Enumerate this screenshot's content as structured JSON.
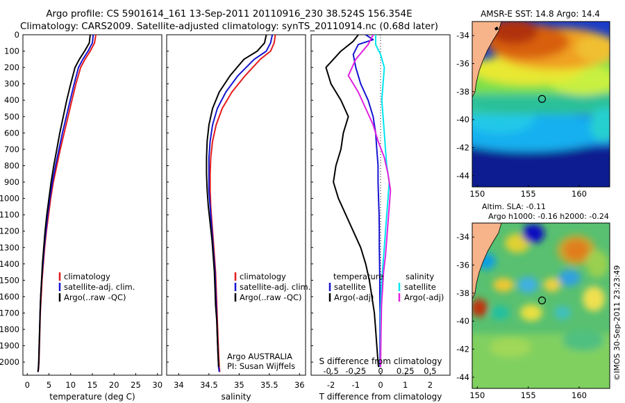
{
  "title_line1": "Argo profile: CS 5901614_161 13-Sep-2011 20110916_230 38.524S 156.354E",
  "title_line2": "Climatology: CARS2009. Satellite-adjusted climatology: synTS_20110914.nc (0.68d later)",
  "credit_vertical": "©IMOS 30-Sep-2011 23:23:49",
  "colors": {
    "climatology": "#e41a1c",
    "satellite": "#1414d2",
    "argo": "#000000",
    "cyan": "#00e5ee",
    "magenta": "#e020e0",
    "land": "#f7b38a"
  },
  "chart_data": [
    {
      "type": "line",
      "panel": "temperature",
      "xlabel": "temperature (deg C)",
      "xlim": [
        -1,
        31
      ],
      "xticks": [
        "0",
        "5",
        "10",
        "15",
        "20",
        "25",
        "30"
      ],
      "ylim": [
        2080,
        0
      ],
      "yticks": [
        "0",
        "100",
        "200",
        "300",
        "400",
        "500",
        "600",
        "700",
        "800",
        "900",
        "1000",
        "1100",
        "1200",
        "1300",
        "1400",
        "1500",
        "1600",
        "1700",
        "1800",
        "1900",
        "2000"
      ],
      "legend": [
        "climatology",
        "satellite-adj. clim.",
        "Argo(..raw -QC)"
      ],
      "series": [
        {
          "name": "climatology",
          "color": "#e41a1c",
          "x": [
            15.8,
            15.5,
            14.5,
            13.3,
            12.3,
            11.2,
            10.3,
            9.4,
            8.5,
            7.6,
            6.8,
            6.0,
            5.4,
            4.9,
            4.4,
            4.0,
            3.7,
            3.4,
            3.2,
            3.0,
            2.9,
            2.8,
            2.7,
            2.6,
            2.5
          ],
          "y": [
            0,
            50,
            100,
            150,
            200,
            300,
            400,
            500,
            600,
            700,
            800,
            900,
            1000,
            1100,
            1200,
            1300,
            1400,
            1500,
            1600,
            1700,
            1800,
            1900,
            2000,
            2040,
            2060
          ]
        },
        {
          "name": "satellite-adj. clim.",
          "color": "#1414d2",
          "x": [
            15.2,
            15.0,
            14.0,
            12.8,
            11.8,
            10.8,
            9.9,
            9.0,
            8.1,
            7.3,
            6.5,
            5.8,
            5.2,
            4.7,
            4.3,
            3.9,
            3.6,
            3.3,
            3.1,
            2.95,
            2.85,
            2.75,
            2.65,
            2.55,
            2.45
          ],
          "y": [
            0,
            50,
            100,
            150,
            200,
            300,
            400,
            500,
            600,
            700,
            800,
            900,
            1000,
            1100,
            1200,
            1300,
            1400,
            1500,
            1600,
            1700,
            1800,
            1900,
            2000,
            2040,
            2060
          ]
        },
        {
          "name": "Argo(..raw -QC)",
          "color": "#000000",
          "x": [
            14.5,
            14.3,
            13.2,
            12.0,
            11.0,
            10.0,
            9.1,
            8.3,
            7.5,
            6.8,
            6.1,
            5.5,
            5.0,
            4.5,
            4.1,
            3.8,
            3.5,
            3.3,
            3.1,
            2.95,
            2.85,
            2.75,
            2.65,
            2.55,
            2.45
          ],
          "y": [
            0,
            50,
            100,
            150,
            200,
            300,
            400,
            500,
            600,
            700,
            800,
            900,
            1000,
            1100,
            1200,
            1300,
            1400,
            1500,
            1600,
            1700,
            1800,
            1900,
            2000,
            2040,
            2060
          ]
        }
      ]
    },
    {
      "type": "line",
      "panel": "salinity",
      "xlabel": "salinity",
      "xlim": [
        33.8,
        36.1
      ],
      "xticks": [
        "34",
        "34.5",
        "35",
        "35.5",
        "36"
      ],
      "ylim": [
        2080,
        0
      ],
      "legend": [
        "climatology",
        "satellite-adj. clim.",
        "Argo(..raw -QC)"
      ],
      "annotation": [
        "Argo AUSTRALIA",
        "PI: Susan Wijffels"
      ],
      "series": [
        {
          "name": "climatology",
          "color": "#e41a1c",
          "x": [
            35.6,
            35.58,
            35.52,
            35.35,
            35.1,
            34.88,
            34.72,
            34.62,
            34.56,
            34.53,
            34.52,
            34.52,
            34.53,
            34.55,
            34.57,
            34.59,
            34.61,
            34.62,
            34.63,
            34.64,
            34.65,
            34.66,
            34.67,
            34.68
          ],
          "y": [
            0,
            50,
            100,
            150,
            250,
            350,
            450,
            550,
            650,
            750,
            850,
            950,
            1050,
            1150,
            1250,
            1350,
            1450,
            1550,
            1650,
            1750,
            1850,
            1950,
            2030,
            2060
          ]
        },
        {
          "name": "satellite-adj. clim.",
          "color": "#1414d2",
          "x": [
            35.55,
            35.52,
            35.45,
            35.25,
            34.98,
            34.78,
            34.64,
            34.56,
            34.52,
            34.5,
            34.5,
            34.5,
            34.52,
            34.54,
            34.56,
            34.58,
            34.6,
            34.61,
            34.62,
            34.63,
            34.64,
            34.65,
            34.66,
            34.67
          ],
          "y": [
            0,
            50,
            100,
            150,
            250,
            350,
            450,
            550,
            650,
            750,
            850,
            950,
            1050,
            1150,
            1250,
            1350,
            1450,
            1550,
            1650,
            1750,
            1850,
            1950,
            2030,
            2060
          ]
        },
        {
          "name": "Argo(..raw -QC)",
          "color": "#000000",
          "x": [
            35.45,
            35.42,
            35.3,
            35.08,
            34.85,
            34.67,
            34.56,
            34.5,
            34.47,
            34.46,
            34.46,
            34.47,
            34.49,
            34.52,
            34.55,
            34.57,
            34.59,
            34.6,
            34.61,
            34.63,
            34.64,
            34.65,
            34.66
          ],
          "y": [
            0,
            50,
            100,
            150,
            250,
            350,
            450,
            550,
            650,
            750,
            850,
            950,
            1050,
            1150,
            1250,
            1350,
            1450,
            1550,
            1650,
            1750,
            1850,
            1950,
            2030
          ]
        }
      ]
    },
    {
      "type": "line",
      "panel": "differences",
      "xlabel": "T difference from climatology",
      "xlabel2": "S difference from climatology",
      "xlim": [
        -2.8,
        2.8
      ],
      "xticks": [
        "-2",
        "-1",
        "0",
        "1",
        "2"
      ],
      "xticks2": [
        "-0.5",
        "-0.25",
        "0",
        "0.25",
        "0.5"
      ],
      "ylim": [
        2080,
        0
      ],
      "legend_temperature": [
        "temperature",
        "satellite",
        "Argo(-adj)"
      ],
      "legend_salinity": [
        "salinity",
        "satellite",
        "Argo(-adj)"
      ],
      "series": [
        {
          "name": "satellite",
          "color": "#1414d2",
          "x": [
            -0.6,
            -0.3,
            -0.9,
            -1.1,
            -1.0,
            -0.8,
            -0.5,
            -0.3,
            -0.2,
            -0.15,
            -0.1,
            -0.1,
            -0.08,
            -0.06,
            -0.05,
            -0.05,
            -0.04,
            -0.03,
            -0.03,
            -0.02,
            -0.02,
            -0.02,
            -0.02
          ],
          "y": [
            0,
            30,
            60,
            120,
            200,
            300,
            400,
            500,
            600,
            700,
            800,
            900,
            1000,
            1100,
            1200,
            1300,
            1400,
            1500,
            1600,
            1700,
            1800,
            1900,
            2030
          ]
        },
        {
          "name": "Argo(-adj)",
          "color": "#000000",
          "x": [
            -0.9,
            -1.1,
            -1.6,
            -2.2,
            -2.0,
            -1.6,
            -1.3,
            -1.5,
            -1.6,
            -1.8,
            -1.9,
            -1.7,
            -1.4,
            -1.1,
            -0.8,
            -0.6,
            -0.45,
            -0.35,
            -0.25,
            -0.2,
            -0.15,
            -0.1,
            -0.08
          ],
          "y": [
            0,
            40,
            100,
            200,
            300,
            400,
            500,
            600,
            700,
            800,
            900,
            1000,
            1100,
            1200,
            1300,
            1400,
            1500,
            1600,
            1700,
            1800,
            1900,
            2000,
            2030
          ]
        },
        {
          "name": "satellite",
          "color": "#00e5ee",
          "x": [
            -0.2,
            -0.2,
            0.0,
            0.15,
            0.1,
            0.05,
            0.1,
            0.15,
            0.2,
            0.25,
            0.35,
            0.3,
            0.25,
            0.2,
            0.15,
            0.1,
            0.05,
            0.02,
            0.0,
            0.0,
            0.0
          ],
          "y": [
            0,
            60,
            120,
            200,
            300,
            400,
            500,
            600,
            700,
            800,
            900,
            1000,
            1100,
            1200,
            1300,
            1400,
            1500,
            1600,
            1700,
            1800,
            2030
          ]
        },
        {
          "name": "Argo(-adj)",
          "color": "#e020e0",
          "x": [
            -0.3,
            -0.5,
            -1.0,
            -1.3,
            -0.9,
            -0.6,
            -0.3,
            -0.1,
            0.15,
            0.3,
            0.4,
            0.35,
            0.3,
            0.25,
            0.2,
            0.12,
            0.08,
            0.04,
            0.02,
            0.0
          ],
          "y": [
            0,
            60,
            150,
            250,
            350,
            450,
            550,
            650,
            750,
            850,
            950,
            1050,
            1150,
            1250,
            1350,
            1450,
            1550,
            1650,
            1800,
            2030
          ]
        }
      ]
    },
    {
      "type": "heatmap",
      "panel": "sst_map",
      "title": "AMSR-E SST: 14.8 Argo: 14.4",
      "xticks": [
        "150",
        "155",
        "160"
      ],
      "yticks": [
        "-34",
        "-36",
        "-38",
        "-40",
        "-42",
        "-44"
      ],
      "xlim": [
        149.5,
        163.0
      ],
      "ylim": [
        -44.8,
        -33.0
      ],
      "argo_position": {
        "lon": 156.354,
        "lat": -38.524
      }
    },
    {
      "type": "heatmap",
      "panel": "sla_map",
      "title_line1": "Altim. SLA: -0.11",
      "title_line2": "Argo h1000: -0.16 h2000: -0.24",
      "xticks": [
        "150",
        "155",
        "160"
      ],
      "yticks": [
        "-34",
        "-36",
        "-38",
        "-40",
        "-42",
        "-44"
      ],
      "xlim": [
        149.5,
        163.0
      ],
      "ylim": [
        -44.8,
        -33.0
      ],
      "argo_position": {
        "lon": 156.354,
        "lat": -38.524
      }
    }
  ]
}
